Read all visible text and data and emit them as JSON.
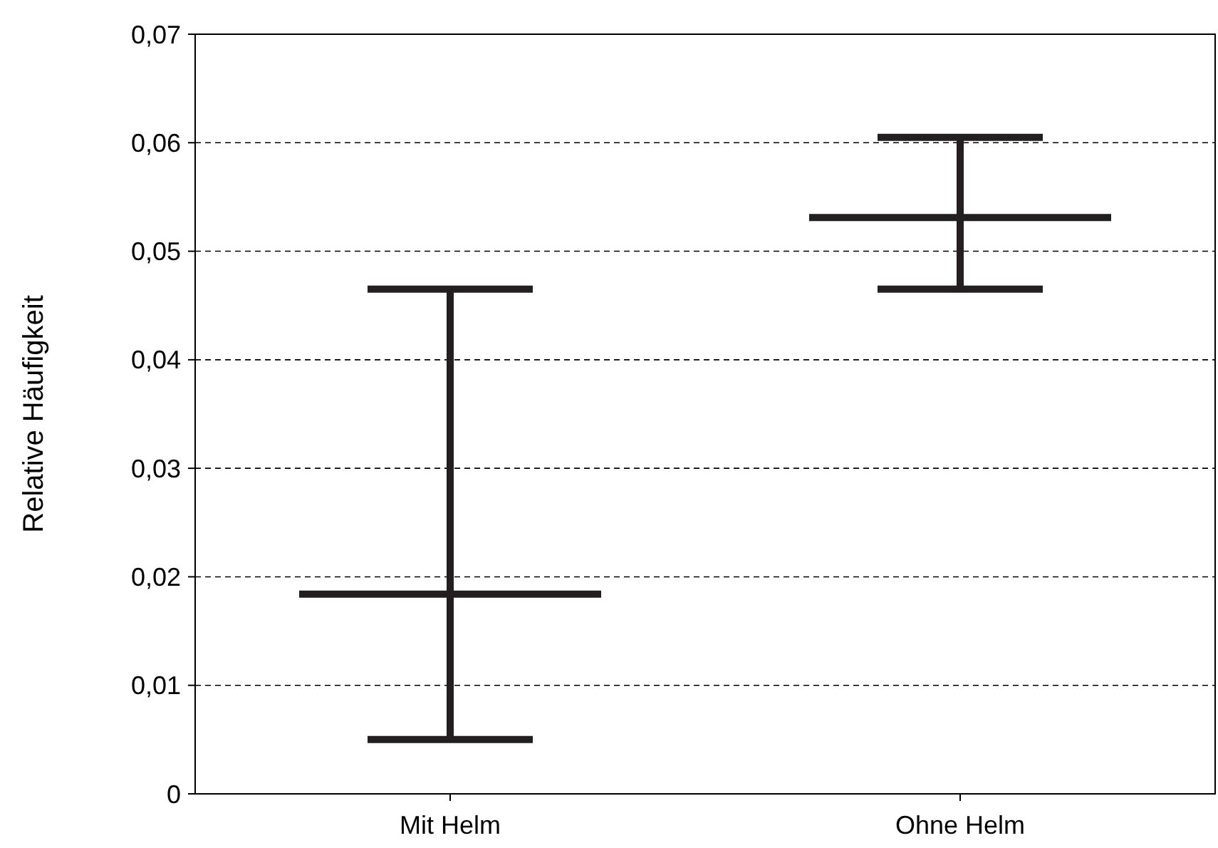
{
  "chart_data": {
    "type": "box",
    "ylabel": "Relative Häufigkeit",
    "categories": [
      "Mit Helm",
      "Ohne Helm"
    ],
    "boxes": [
      {
        "low": 0.005,
        "q1": 0.0184,
        "median": 0.0184,
        "q3": 0.0184,
        "high": 0.0465
      },
      {
        "low": 0.0465,
        "q1": 0.0531,
        "median": 0.0531,
        "q3": 0.0531,
        "high": 0.0605
      }
    ],
    "color": "#231f20",
    "ylim": [
      0,
      0.07
    ],
    "yticks": [
      0,
      {
        "value": 0.01,
        "label": "0,01"
      },
      {
        "value": 0.02,
        "label": "0,02"
      },
      {
        "value": 0.03,
        "label": "0,03"
      },
      {
        "value": 0.04,
        "label": "0,04"
      },
      {
        "value": 0.05,
        "label": "0,05"
      },
      {
        "value": 0.06,
        "label": "0,06"
      },
      {
        "value": 0.07,
        "label": "0,07"
      }
    ],
    "grid": "y"
  }
}
